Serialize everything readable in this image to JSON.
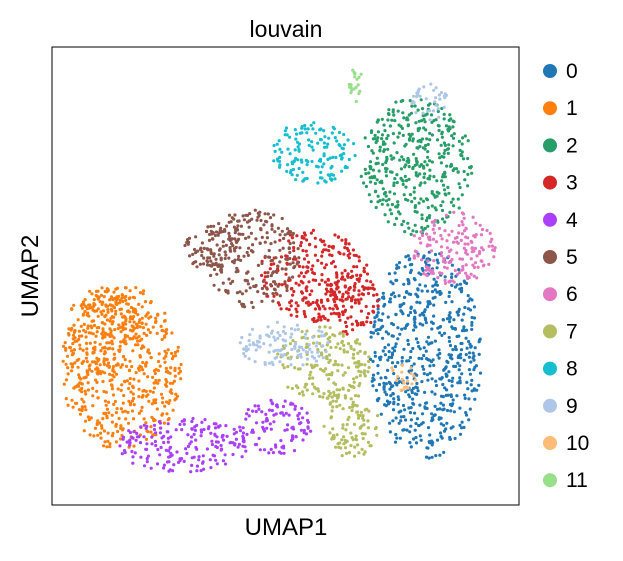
{
  "chart_data": {
    "type": "scatter",
    "title": "louvain",
    "xlabel": "UMAP1",
    "ylabel": "UMAP2",
    "xlim": [
      0,
      1
    ],
    "ylim": [
      0,
      1
    ],
    "grid": false,
    "ticks": "none",
    "legend_position": "right-outside",
    "categories": [
      {
        "name": "0",
        "color": "#1f77b4",
        "ellipses": [
          [
            0.8,
            0.33,
            0.12,
            0.23
          ]
        ]
      },
      {
        "name": "1",
        "color": "#ff7f0e",
        "ellipses": [
          [
            0.15,
            0.3,
            0.13,
            0.18
          ],
          [
            0.11,
            0.38,
            0.08,
            0.1
          ]
        ]
      },
      {
        "name": "2",
        "color": "#279e68",
        "ellipses": [
          [
            0.78,
            0.74,
            0.12,
            0.15
          ]
        ]
      },
      {
        "name": "3",
        "color": "#d62728",
        "ellipses": [
          [
            0.56,
            0.5,
            0.12,
            0.1
          ],
          [
            0.64,
            0.44,
            0.06,
            0.07
          ]
        ]
      },
      {
        "name": "4",
        "color": "#aa40fc",
        "ellipses": [
          [
            0.28,
            0.13,
            0.14,
            0.06
          ],
          [
            0.48,
            0.17,
            0.08,
            0.06
          ]
        ]
      },
      {
        "name": "5",
        "color": "#8c564b",
        "ellipses": [
          [
            0.43,
            0.54,
            0.1,
            0.11
          ],
          [
            0.34,
            0.56,
            0.06,
            0.05
          ]
        ]
      },
      {
        "name": "6",
        "color": "#e377c2",
        "ellipses": [
          [
            0.86,
            0.56,
            0.09,
            0.08
          ]
        ]
      },
      {
        "name": "7",
        "color": "#b5bd61",
        "ellipses": [
          [
            0.64,
            0.18,
            0.06,
            0.08
          ],
          [
            0.58,
            0.31,
            0.1,
            0.08
          ]
        ]
      },
      {
        "name": "8",
        "color": "#17becf",
        "ellipses": [
          [
            0.56,
            0.77,
            0.09,
            0.07
          ]
        ]
      },
      {
        "name": "9",
        "color": "#aec7e8",
        "ellipses": [
          [
            0.81,
            0.88,
            0.04,
            0.04
          ],
          [
            0.5,
            0.35,
            0.1,
            0.05
          ]
        ]
      },
      {
        "name": "10",
        "color": "#ffbb78",
        "ellipses": [
          [
            0.75,
            0.28,
            0.03,
            0.03
          ]
        ]
      },
      {
        "name": "11",
        "color": "#98df8a",
        "ellipses": [
          [
            0.65,
            0.92,
            0.015,
            0.04
          ]
        ]
      }
    ]
  }
}
